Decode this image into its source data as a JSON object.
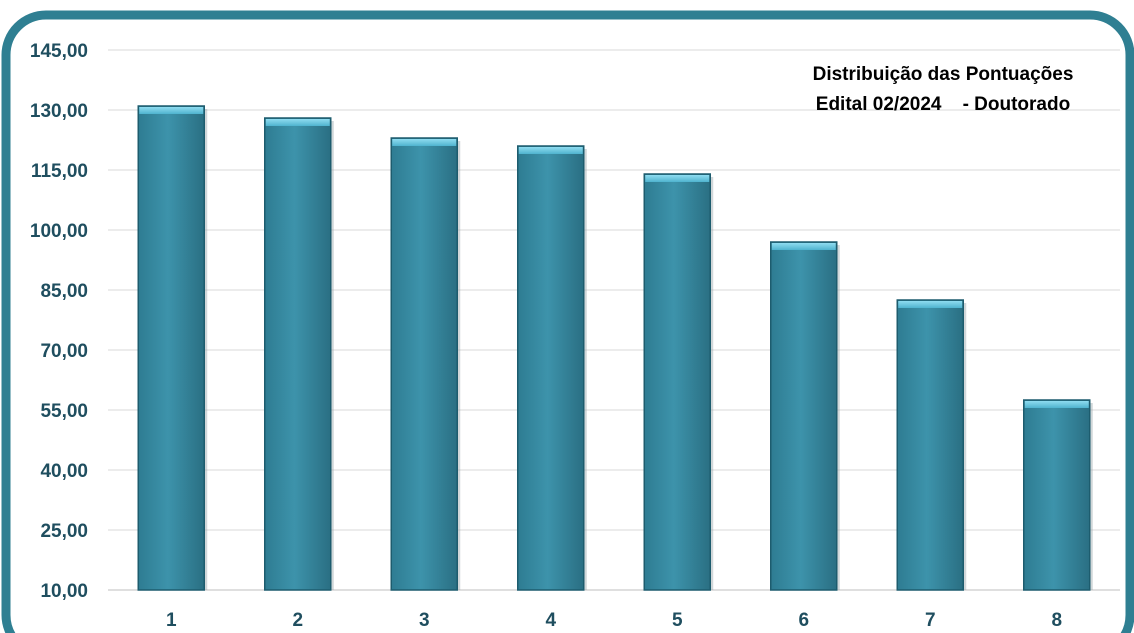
{
  "chart_data": {
    "type": "bar",
    "title_line1": "Distribuição das Pontuações",
    "title_line2": "Edital 02/2024    - Doutorado",
    "categories": [
      "1",
      "2",
      "3",
      "4",
      "5",
      "6",
      "7",
      "8"
    ],
    "values": [
      131,
      128,
      123,
      121,
      114,
      97,
      82.5,
      57.5
    ],
    "ylim": [
      10,
      145
    ],
    "yticks": [
      "10,00",
      "25,00",
      "40,00",
      "55,00",
      "70,00",
      "85,00",
      "100,00",
      "115,00",
      "130,00",
      "145,00"
    ],
    "xlabel": "",
    "ylabel": "",
    "grid": true,
    "colors": {
      "bar": "#3a8ea6",
      "bar_top": "#5cc3de",
      "bar_edge": "#1d5c6e",
      "frame": "#2f7f92",
      "text": "#1f4e5f",
      "grid": "#d9d9d9"
    }
  }
}
